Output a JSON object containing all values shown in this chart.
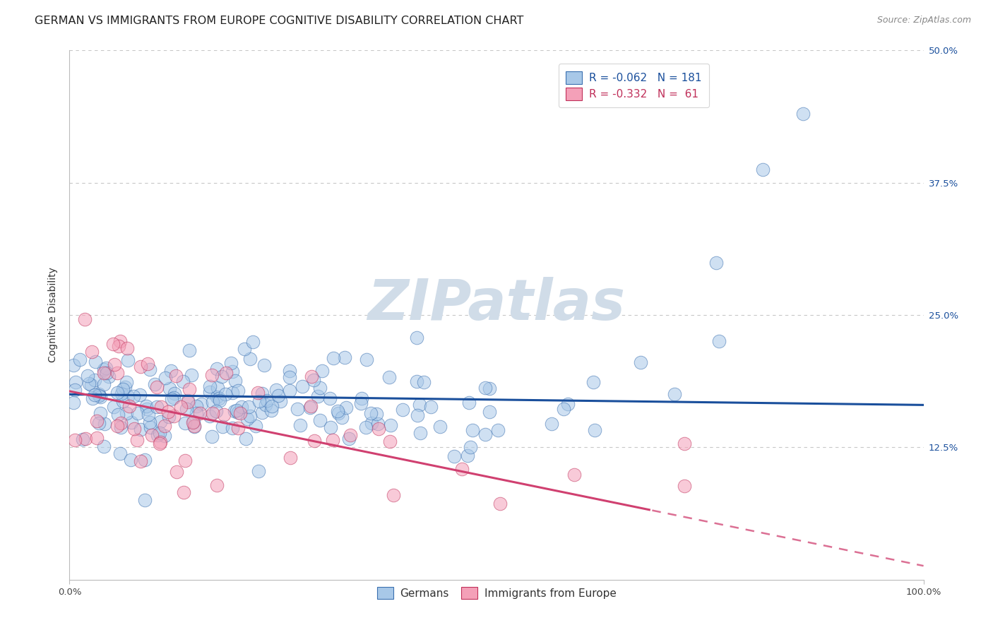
{
  "title": "GERMAN VS IMMIGRANTS FROM EUROPE COGNITIVE DISABILITY CORRELATION CHART",
  "source": "Source: ZipAtlas.com",
  "ylabel": "Cognitive Disability",
  "xlim": [
    0.0,
    1.0
  ],
  "ylim": [
    0.0,
    0.5
  ],
  "ytick_values": [
    0.125,
    0.25,
    0.375,
    0.5
  ],
  "ytick_labels": [
    "12.5%",
    "25.0%",
    "37.5%",
    "50.0%"
  ],
  "xtick_values": [
    0.0,
    1.0
  ],
  "xtick_labels": [
    "0.0%",
    "100.0%"
  ],
  "legend_label1": "Germans",
  "legend_label2": "Immigrants from Europe",
  "legend_R1": "-0.062",
  "legend_N1": "181",
  "legend_R2": "-0.332",
  "legend_N2": " 61",
  "color_blue_face": "#a8c8e8",
  "color_blue_edge": "#3a6fb0",
  "color_pink_face": "#f4a0b8",
  "color_pink_edge": "#c0305a",
  "color_blue_line": "#1a4f9c",
  "color_pink_line": "#d04070",
  "watermark_color": "#d0dce8",
  "grid_color": "#c8c8c8",
  "background_color": "#ffffff",
  "title_fontsize": 11.5,
  "axis_label_fontsize": 10,
  "tick_fontsize": 9.5,
  "legend_fontsize": 11,
  "source_fontsize": 9,
  "scatter_size": 180,
  "scatter_alpha": 0.55
}
